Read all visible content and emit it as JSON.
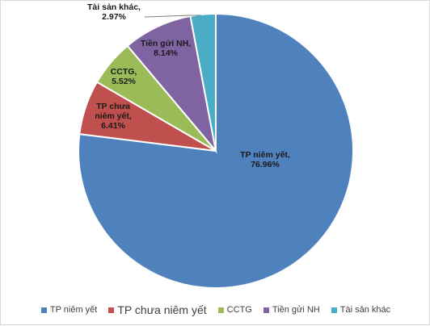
{
  "chart_data": {
    "type": "pie",
    "title": "",
    "legend_position": "bottom",
    "start_angle_deg": 0,
    "direction": "clockwise",
    "slices": [
      {
        "name": "TP niêm yết",
        "value": 76.96,
        "label_line1": "TP niêm yết,",
        "label_line2": "76.96%",
        "color": "#4f81bd"
      },
      {
        "name": "TP chưa niêm yết",
        "value": 6.41,
        "label_line1": "TP chưa",
        "label_line2": "niêm yết,",
        "label_line3": "6.41%",
        "color": "#c0504d"
      },
      {
        "name": "CCTG",
        "value": 5.52,
        "label_line1": "CCTG,",
        "label_line2": "5.52%",
        "color": "#9bbb59"
      },
      {
        "name": "Tiền gửi NH",
        "value": 8.14,
        "label_line1": "Tiền gửi NH,",
        "label_line2": "8.14%",
        "color": "#8064a2"
      },
      {
        "name": "Tài sản khác",
        "value": 2.97,
        "label_line1": "Tài sản khác,",
        "label_line2": "2.97%",
        "color": "#4bacc6"
      }
    ]
  }
}
